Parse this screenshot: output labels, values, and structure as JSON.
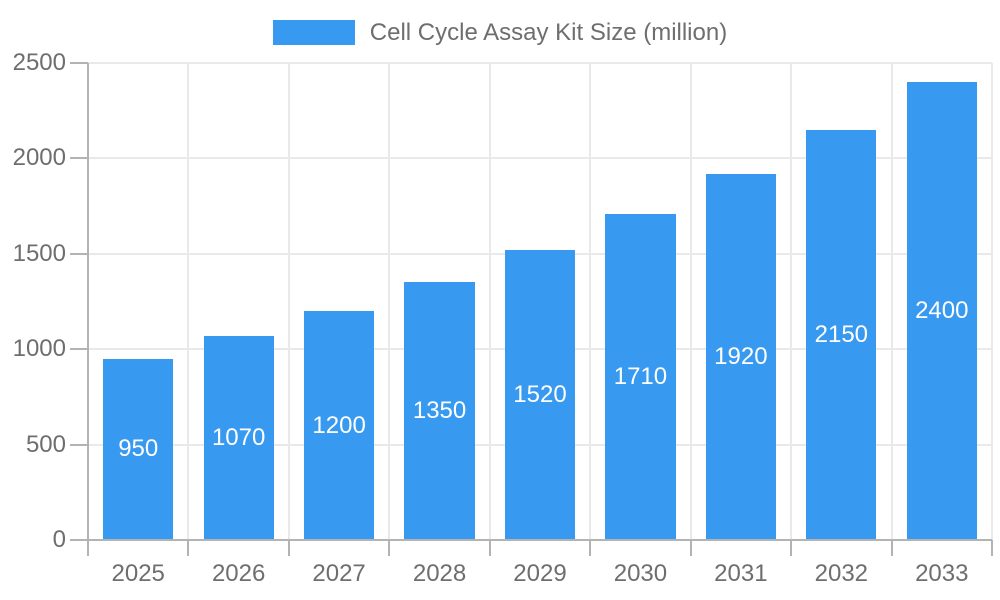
{
  "chart_data": {
    "type": "bar",
    "title": "Cell Cycle Assay Kit Size (million)",
    "legend_entries": [
      "Cell Cycle Assay Kit Size (million)"
    ],
    "legend_position": "top",
    "categories": [
      "2025",
      "2026",
      "2027",
      "2028",
      "2029",
      "2030",
      "2031",
      "2032",
      "2033"
    ],
    "values": [
      950,
      1070,
      1200,
      1350,
      1520,
      1710,
      1920,
      2150,
      2400
    ],
    "value_labels": [
      "950",
      "1070",
      "1200",
      "1350",
      "1520",
      "1710",
      "1920",
      "2150",
      "2400"
    ],
    "xlabel": "",
    "ylabel": "",
    "ylim": [
      0,
      2500
    ],
    "yticks": [
      0,
      500,
      1000,
      1500,
      2000,
      2500
    ],
    "grid": true,
    "colors": {
      "bar": "#3799F0",
      "value_label": "#FFFFFF",
      "axis_text": "#6E6E6E",
      "grid_line": "#E9E9E9",
      "axis_line": "#B3B3B3",
      "background": "#FFFFFF"
    }
  }
}
